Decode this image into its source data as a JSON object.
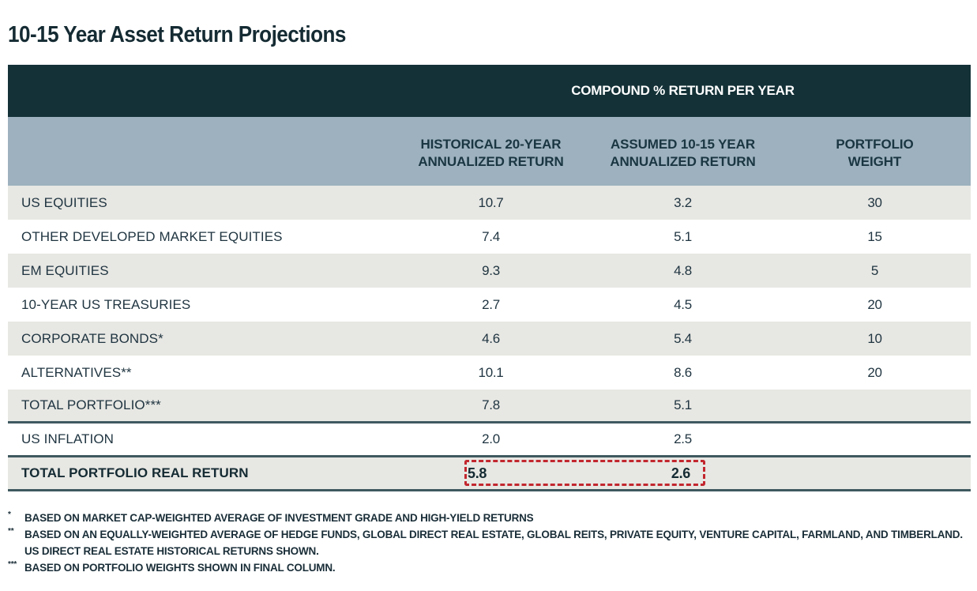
{
  "title": "10-15 Year Asset Return Projections",
  "table": {
    "group_header": "COMPOUND % RETURN PER YEAR",
    "columns": [
      {
        "label": "",
        "key": "label"
      },
      {
        "label": "HISTORICAL 20-YEAR ANNUALIZED RETURN",
        "line1": "HISTORICAL 20-YEAR",
        "line2": "ANNUALIZED RETURN"
      },
      {
        "label": "ASSUMED 10-15 YEAR ANNUALIZED RETURN",
        "line1": "ASSUMED 10-15 YEAR",
        "line2": "ANNUALIZED RETURN"
      },
      {
        "label": "PORTFOLIO WEIGHT",
        "line1": "PORTFOLIO",
        "line2": "WEIGHT"
      }
    ],
    "rows": [
      {
        "label": "US EQUITIES",
        "historical": "10.7",
        "assumed": "3.2",
        "weight": "30"
      },
      {
        "label": "OTHER DEVELOPED MARKET EQUITIES",
        "historical": "7.4",
        "assumed": "5.1",
        "weight": "15"
      },
      {
        "label": "EM EQUITIES",
        "historical": "9.3",
        "assumed": "4.8",
        "weight": "5"
      },
      {
        "label": "10-YEAR US TREASURIES",
        "historical": "2.7",
        "assumed": "4.5",
        "weight": "20"
      },
      {
        "label": "CORPORATE BONDS*",
        "historical": "4.6",
        "assumed": "5.4",
        "weight": "10"
      },
      {
        "label": "ALTERNATIVES**",
        "historical": "10.1",
        "assumed": "8.6",
        "weight": "20"
      },
      {
        "label": "TOTAL PORTFOLIO***",
        "historical": "7.8",
        "assumed": "5.1",
        "weight": ""
      },
      {
        "label": "US INFLATION",
        "historical": "2.0",
        "assumed": "2.5",
        "weight": ""
      },
      {
        "label": "TOTAL PORTFOLIO REAL RETURN",
        "historical": "5.8",
        "assumed": "2.6",
        "weight": ""
      }
    ],
    "highlight": {
      "row": "TOTAL PORTFOLIO REAL RETURN",
      "style": "dashed",
      "color": "#c2262e"
    }
  },
  "footnotes": [
    {
      "mark": "*",
      "text": "BASED ON MARKET CAP-WEIGHTED AVERAGE OF INVESTMENT GRADE AND HIGH-YIELD RETURNS"
    },
    {
      "mark": "**",
      "text": "BASED ON AN EQUALLY-WEIGHTED AVERAGE OF HEDGE FUNDS, GLOBAL DIRECT REAL ESTATE, GLOBAL REITS, PRIVATE EQUITY, VENTURE CAPITAL, FARMLAND, AND TIMBERLAND. US DIRECT REAL ESTATE HISTORICAL RETURNS SHOWN."
    },
    {
      "mark": "***",
      "text": "BASED ON PORTFOLIO WEIGHTS SHOWN IN FINAL COLUMN."
    }
  ],
  "colors": {
    "header_dark": "#133137",
    "header_light": "#9db1be",
    "row_gray": "#e7e7e3",
    "row_white": "#ffffff",
    "separator": "#3f5960",
    "highlight": "#c2262e"
  }
}
